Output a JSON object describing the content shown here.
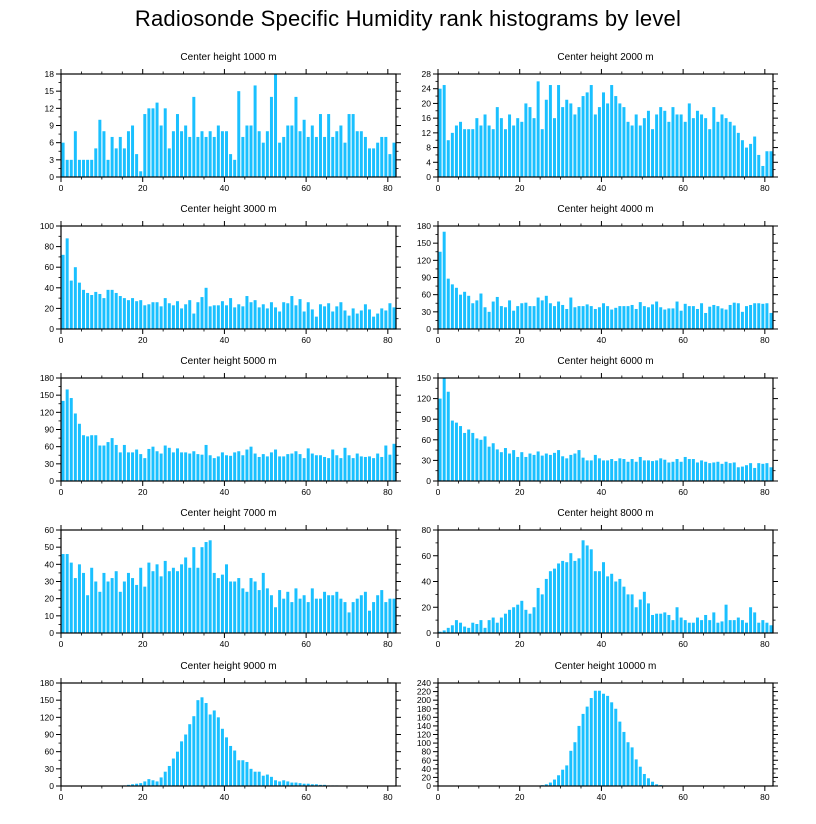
{
  "title": "Radiosonde Specific Humidity rank histograms by level",
  "colors": {
    "bar": "#1ac0ff",
    "axis": "#000000"
  },
  "chart_data": [
    {
      "type": "bar",
      "title": "Center height 1000 m",
      "xlabel": "",
      "ylabel": "",
      "xlim": [
        0,
        82
      ],
      "xticks": [
        0,
        20,
        40,
        60,
        80
      ],
      "ylim": [
        0,
        18
      ],
      "yticks": [
        0,
        3,
        6,
        9,
        12,
        15,
        18
      ],
      "values": [
        6,
        3,
        3,
        8,
        3,
        3,
        3,
        3,
        5,
        10,
        8,
        3,
        7,
        5,
        7,
        5,
        8,
        9,
        4,
        1,
        11,
        12,
        12,
        13,
        9,
        12,
        5,
        8,
        11,
        8,
        9,
        7,
        14,
        7,
        8,
        7,
        8,
        7,
        9,
        8,
        8,
        4,
        3,
        15,
        7,
        9,
        9,
        16,
        8,
        6,
        8,
        14,
        18,
        6,
        7,
        9,
        9,
        14,
        8,
        10,
        7,
        9,
        7,
        11,
        7,
        11,
        7,
        8,
        9,
        6,
        11,
        11,
        8,
        8,
        7,
        5,
        5,
        6,
        7,
        7,
        4,
        6
      ]
    },
    {
      "type": "bar",
      "title": "Center height 2000 m",
      "xlabel": "",
      "ylabel": "",
      "xlim": [
        0,
        82
      ],
      "xticks": [
        0,
        20,
        40,
        60,
        80
      ],
      "ylim": [
        0,
        28
      ],
      "yticks": [
        0,
        4,
        8,
        12,
        16,
        20,
        24,
        28
      ],
      "values": [
        24,
        25,
        10,
        12,
        14,
        15,
        13,
        13,
        13,
        16,
        14,
        17,
        14,
        13,
        19,
        16,
        13,
        17,
        14,
        16,
        15,
        20,
        19,
        16,
        26,
        13,
        21,
        25,
        16,
        25,
        19,
        21,
        20,
        17,
        19,
        22,
        23,
        25,
        17,
        19,
        23,
        20,
        25,
        22,
        20,
        19,
        15,
        14,
        17,
        14,
        16,
        18,
        13,
        17,
        19,
        18,
        15,
        19,
        17,
        17,
        15,
        20,
        16,
        18,
        17,
        16,
        13,
        19,
        15,
        17,
        16,
        15,
        14,
        12,
        10,
        8,
        9,
        11,
        6,
        3,
        7,
        7
      ]
    },
    {
      "type": "bar",
      "title": "Center height 3000 m",
      "xlabel": "",
      "ylabel": "",
      "xlim": [
        0,
        82
      ],
      "xticks": [
        0,
        20,
        40,
        60,
        80
      ],
      "ylim": [
        0,
        100
      ],
      "yticks": [
        0,
        20,
        40,
        60,
        80,
        100
      ],
      "values": [
        72,
        88,
        47,
        60,
        45,
        38,
        35,
        33,
        36,
        34,
        30,
        38,
        38,
        35,
        32,
        30,
        28,
        30,
        27,
        28,
        23,
        24,
        26,
        26,
        22,
        30,
        25,
        23,
        27,
        20,
        24,
        28,
        15,
        26,
        31,
        40,
        22,
        23,
        23,
        27,
        23,
        30,
        21,
        24,
        22,
        32,
        26,
        28,
        21,
        24,
        20,
        26,
        21,
        17,
        26,
        25,
        32,
        23,
        29,
        17,
        26,
        19,
        12,
        24,
        22,
        25,
        17,
        22,
        26,
        18,
        13,
        20,
        15,
        18,
        24,
        19,
        12,
        15,
        20,
        18,
        25,
        21
      ]
    },
    {
      "type": "bar",
      "title": "Center height 4000 m",
      "xlabel": "",
      "ylabel": "",
      "xlim": [
        0,
        82
      ],
      "xticks": [
        0,
        20,
        40,
        60,
        80
      ],
      "ylim": [
        0,
        180
      ],
      "yticks": [
        0,
        30,
        60,
        90,
        120,
        150,
        180
      ],
      "values": [
        135,
        170,
        88,
        78,
        72,
        60,
        65,
        58,
        45,
        50,
        62,
        38,
        30,
        48,
        56,
        40,
        38,
        50,
        32,
        40,
        45,
        46,
        40,
        40,
        55,
        50,
        58,
        45,
        40,
        48,
        42,
        35,
        55,
        38,
        40,
        40,
        43,
        40,
        35,
        38,
        45,
        40,
        34,
        37,
        40,
        40,
        40,
        42,
        35,
        47,
        40,
        38,
        43,
        48,
        38,
        34,
        36,
        36,
        48,
        32,
        44,
        40,
        40,
        35,
        45,
        28,
        39,
        42,
        40,
        36,
        34,
        42,
        46,
        45,
        30,
        40,
        42,
        45,
        45,
        44,
        45,
        28
      ]
    },
    {
      "type": "bar",
      "title": "Center height 5000 m",
      "xlabel": "",
      "ylabel": "",
      "xlim": [
        0,
        82
      ],
      "xticks": [
        0,
        20,
        40,
        60,
        80
      ],
      "ylim": [
        0,
        180
      ],
      "yticks": [
        0,
        30,
        60,
        90,
        120,
        150,
        180
      ],
      "values": [
        140,
        160,
        145,
        118,
        100,
        80,
        78,
        80,
        80,
        62,
        62,
        68,
        75,
        63,
        50,
        63,
        50,
        50,
        55,
        47,
        40,
        56,
        60,
        52,
        48,
        62,
        58,
        50,
        57,
        50,
        50,
        48,
        52,
        47,
        46,
        63,
        45,
        40,
        43,
        50,
        45,
        44,
        50,
        52,
        45,
        55,
        60,
        48,
        42,
        47,
        43,
        50,
        55,
        43,
        43,
        47,
        48,
        52,
        47,
        40,
        57,
        48,
        45,
        45,
        42,
        40,
        55,
        45,
        40,
        58,
        45,
        40,
        48,
        43,
        42,
        43,
        40,
        48,
        42,
        62,
        46,
        65
      ]
    },
    {
      "type": "bar",
      "title": "Center height 6000 m",
      "xlabel": "",
      "ylabel": "",
      "xlim": [
        0,
        82
      ],
      "xticks": [
        0,
        20,
        40,
        60,
        80
      ],
      "ylim": [
        0,
        150
      ],
      "yticks": [
        0,
        30,
        60,
        90,
        120,
        150
      ],
      "values": [
        120,
        150,
        130,
        88,
        85,
        80,
        70,
        75,
        70,
        62,
        60,
        65,
        50,
        55,
        46,
        42,
        48,
        40,
        45,
        35,
        42,
        35,
        40,
        38,
        43,
        37,
        40,
        38,
        41,
        45,
        36,
        33,
        38,
        40,
        45,
        34,
        30,
        30,
        38,
        33,
        30,
        30,
        32,
        29,
        33,
        32,
        28,
        32,
        28,
        35,
        30,
        30,
        29,
        30,
        33,
        31,
        27,
        28,
        32,
        28,
        35,
        32,
        32,
        27,
        30,
        28,
        26,
        27,
        28,
        25,
        28,
        26,
        27,
        20,
        21,
        23,
        26,
        19,
        26,
        25,
        26,
        20
      ]
    },
    {
      "type": "bar",
      "title": "Center height 7000 m",
      "xlabel": "",
      "ylabel": "",
      "xlim": [
        0,
        82
      ],
      "xticks": [
        0,
        20,
        40,
        60,
        80
      ],
      "ylim": [
        0,
        60
      ],
      "yticks": [
        0,
        10,
        20,
        30,
        40,
        50,
        60
      ],
      "values": [
        46,
        46,
        41,
        32,
        40,
        35,
        22,
        38,
        30,
        24,
        35,
        30,
        32,
        36,
        24,
        30,
        35,
        32,
        28,
        38,
        27,
        41,
        36,
        40,
        33,
        42,
        36,
        38,
        36,
        40,
        44,
        38,
        50,
        38,
        50,
        53,
        54,
        35,
        32,
        34,
        40,
        30,
        30,
        32,
        26,
        24,
        32,
        30,
        25,
        35,
        26,
        22,
        15,
        25,
        20,
        24,
        18,
        26,
        20,
        22,
        18,
        26,
        20,
        20,
        24,
        22,
        22,
        24,
        20,
        18,
        12,
        18,
        20,
        22,
        24,
        13,
        18,
        22,
        25,
        18,
        20,
        20
      ]
    },
    {
      "type": "bar",
      "title": "Center height 8000 m",
      "xlabel": "",
      "ylabel": "",
      "xlim": [
        0,
        82
      ],
      "xticks": [
        0,
        20,
        40,
        60,
        80
      ],
      "ylim": [
        0,
        80
      ],
      "yticks": [
        0,
        20,
        40,
        60,
        80
      ],
      "values": [
        1,
        2,
        4,
        6,
        10,
        8,
        5,
        4,
        8,
        7,
        10,
        4,
        10,
        12,
        8,
        12,
        15,
        18,
        20,
        22,
        25,
        18,
        15,
        20,
        35,
        30,
        42,
        48,
        50,
        54,
        56,
        55,
        62,
        56,
        58,
        72,
        68,
        65,
        48,
        48,
        55,
        44,
        46,
        40,
        42,
        36,
        30,
        30,
        20,
        26,
        32,
        23,
        14,
        15,
        15,
        16,
        14,
        10,
        20,
        12,
        10,
        8,
        8,
        12,
        10,
        14,
        10,
        16,
        8,
        9,
        22,
        10,
        10,
        12,
        10,
        8,
        20,
        16,
        8,
        10,
        8,
        6
      ]
    },
    {
      "type": "bar",
      "title": "Center height 9000 m",
      "xlabel": "",
      "ylabel": "",
      "xlim": [
        0,
        82
      ],
      "xticks": [
        0,
        20,
        40,
        60,
        80
      ],
      "ylim": [
        0,
        180
      ],
      "yticks": [
        0,
        30,
        60,
        90,
        120,
        150,
        180
      ],
      "values": [
        0,
        0,
        0,
        0,
        0,
        0,
        0,
        0,
        0,
        0,
        0,
        0,
        0,
        0,
        0,
        1,
        2,
        3,
        4,
        5,
        8,
        12,
        10,
        8,
        15,
        25,
        35,
        48,
        60,
        78,
        90,
        108,
        122,
        150,
        155,
        145,
        125,
        132,
        120,
        100,
        85,
        70,
        62,
        45,
        45,
        42,
        30,
        25,
        25,
        18,
        20,
        16,
        10,
        8,
        10,
        8,
        6,
        6,
        5,
        4,
        4,
        3,
        3,
        2,
        2,
        1,
        1,
        1,
        0,
        0,
        0,
        0,
        0,
        0,
        0,
        0,
        0,
        0,
        0,
        0,
        0,
        0
      ]
    },
    {
      "type": "bar",
      "title": "Center height 10000 m",
      "xlabel": "",
      "ylabel": "",
      "xlim": [
        0,
        82
      ],
      "xticks": [
        0,
        20,
        40,
        60,
        80
      ],
      "ylim": [
        0,
        240
      ],
      "yticks": [
        0,
        20,
        40,
        60,
        80,
        100,
        120,
        140,
        160,
        180,
        200,
        220,
        240
      ],
      "values": [
        0,
        0,
        0,
        0,
        0,
        0,
        0,
        0,
        0,
        0,
        0,
        0,
        0,
        0,
        0,
        0,
        0,
        0,
        0,
        0,
        0,
        0,
        0,
        0,
        0,
        2,
        4,
        8,
        15,
        25,
        38,
        48,
        82,
        102,
        140,
        168,
        185,
        205,
        222,
        222,
        215,
        210,
        195,
        180,
        150,
        126,
        102,
        90,
        62,
        45,
        28,
        18,
        10,
        4,
        2,
        1,
        0,
        0,
        0,
        0,
        0,
        0,
        0,
        0,
        0,
        0,
        0,
        0,
        0,
        0,
        0,
        0,
        0,
        0,
        0,
        0,
        0,
        0,
        0,
        0,
        0,
        0
      ]
    }
  ]
}
